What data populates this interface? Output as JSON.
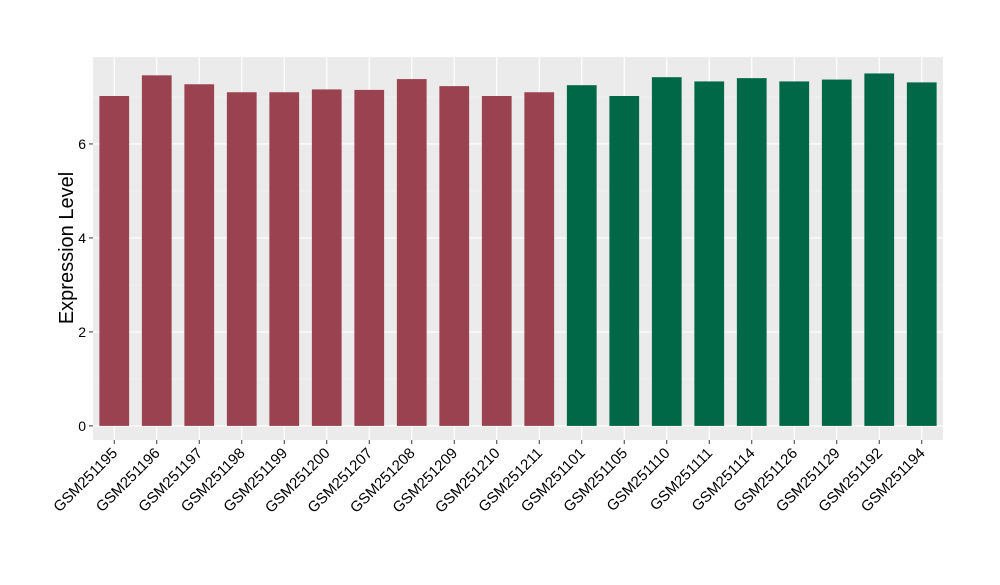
{
  "chart_data": {
    "type": "bar",
    "title": "",
    "xlabel": "",
    "ylabel": "Expression Level",
    "ylim": [
      -0.3,
      7.85
    ],
    "yticks": [
      0,
      2,
      4,
      6
    ],
    "grid": true,
    "legend": "none",
    "colors": {
      "panel_background": "#EBEBEB",
      "grid_major": "#FFFFFF",
      "grid_minor": "#F5F5F5",
      "group_1": "#9B4250",
      "group_2": "#006846",
      "axis_text": "#000000",
      "tick_mark": "#333333"
    },
    "categories": [
      "GSM251195",
      "GSM251196",
      "GSM251197",
      "GSM251198",
      "GSM251199",
      "GSM251200",
      "GSM251207",
      "GSM251208",
      "GSM251209",
      "GSM251210",
      "GSM251211",
      "GSM251101",
      "GSM251105",
      "GSM251110",
      "GSM251111",
      "GSM251114",
      "GSM251126",
      "GSM251129",
      "GSM251192",
      "GSM251194"
    ],
    "values": [
      7.02,
      7.46,
      7.27,
      7.1,
      7.1,
      7.16,
      7.15,
      7.38,
      7.23,
      7.02,
      7.1,
      7.25,
      7.02,
      7.42,
      7.33,
      7.4,
      7.33,
      7.37,
      7.5,
      7.31
    ],
    "groups": [
      1,
      1,
      1,
      1,
      1,
      1,
      1,
      1,
      1,
      1,
      1,
      2,
      2,
      2,
      2,
      2,
      2,
      2,
      2,
      2
    ]
  }
}
